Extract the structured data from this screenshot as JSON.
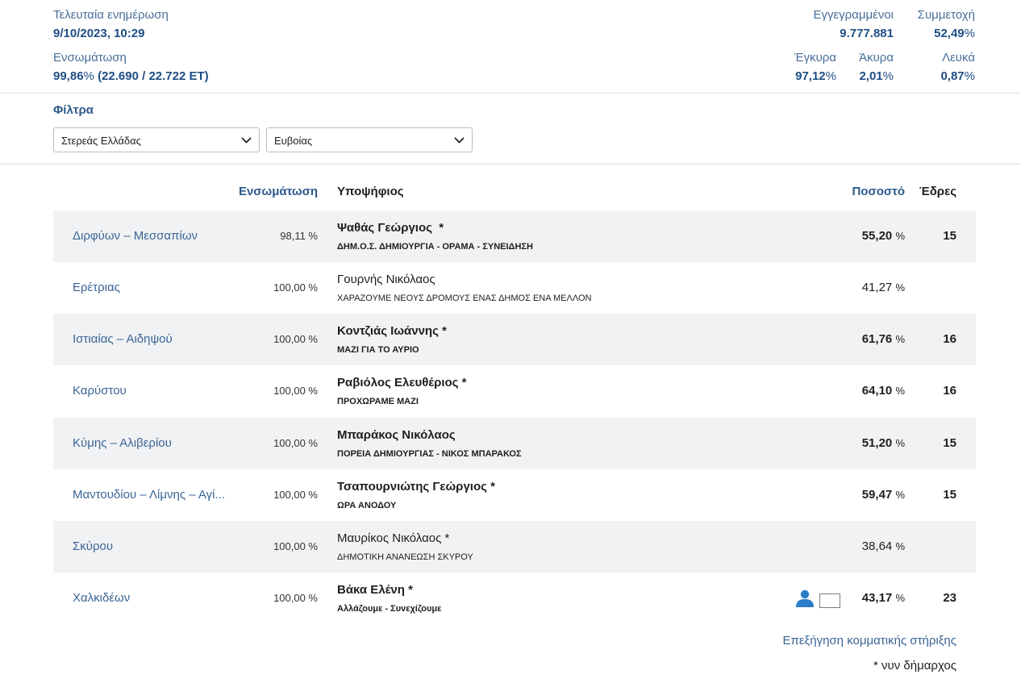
{
  "header": {
    "last_update_label": "Τελευταία ενημέρωση",
    "last_update_value": "9/10/2023, 10:29",
    "integration_label": "Ενσωμάτωση",
    "integration_value": "99,86",
    "integration_pct_sign": "%",
    "integration_counts": "(22.690 / 22.722 ΕΤ)",
    "registered_label": "Εγγεγραμμένοι",
    "registered_value": "9.777.881",
    "turnout_label": "Συμμετοχή",
    "turnout_value": "52,49",
    "valid_label": "Έγκυρα",
    "valid_value": "97,12",
    "invalid_label": "Άκυρα",
    "invalid_value": "2,01",
    "blank_label": "Λευκά",
    "blank_value": "0,87",
    "pct_sign": "%"
  },
  "filters": {
    "title": "Φίλτρα",
    "region_selected": "Στερεάς Ελλάδας",
    "prefecture_selected": "Ευβοίας"
  },
  "table": {
    "headers": {
      "integration": "Ενσωμάτωση",
      "candidate": "Υποψήφιος",
      "percentage": "Ποσοστό",
      "seats": "Έδρες"
    },
    "rows": [
      {
        "muni": "Διρφύων – Μεσσαπίων",
        "integ": "98,11 %",
        "cand": "Ψαθάς Γεώργιος  *",
        "party": "ΔΗΜ.Ο.Σ. ΔΗΜΙΟΥΡΓΙΑ - ΟΡΑΜΑ - ΣΥΝΕΙΔΗΣΗ",
        "pct": "55,20",
        "seats": "15"
      },
      {
        "muni": "Ερέτριας",
        "integ": "100,00 %",
        "cand": "Γουρνής Νικόλαος",
        "party": "ΧΑΡΑΖΟΥΜΕ ΝΕΟΥΣ ΔΡΟΜΟΥΣ ΕΝΑΣ ΔΗΜΟΣ ΕΝΑ ΜΕΛΛΟΝ",
        "pct": "41,27",
        "seats": ""
      },
      {
        "muni": "Ιστιαίας – Αιδηψού",
        "integ": "100,00 %",
        "cand": "Κοντζιάς Ιωάννης *",
        "party": "ΜΑΖΙ ΓΙΑ ΤΟ ΑΥΡΙΟ",
        "pct": "61,76",
        "seats": "16"
      },
      {
        "muni": "Καρύστου",
        "integ": "100,00 %",
        "cand": "Ραβιόλος Ελευθέριος *",
        "party": "ΠΡΟΧΩΡΑΜΕ ΜΑΖΙ",
        "pct": "64,10",
        "seats": "16"
      },
      {
        "muni": "Κύμης – Αλιβερίου",
        "integ": "100,00 %",
        "cand": "Μπαράκος Νικόλαος",
        "party": "ΠΟΡΕΙΑ ΔΗΜΙΟΥΡΓΙΑΣ - ΝΙΚΟΣ ΜΠΑΡΑΚΟΣ",
        "pct": "51,20",
        "seats": "15"
      },
      {
        "muni": "Μαντουδίου – Λίμνης – Αγί...",
        "integ": "100,00 %",
        "cand": "Τσαπουρνιώτης Γεώργιος *",
        "party": "ΩΡΑ ΑΝΟΔΟΥ",
        "pct": "59,47",
        "seats": "15"
      },
      {
        "muni": "Σκύρου",
        "integ": "100,00 %",
        "cand": "Μαυρίκος Νικόλαος *",
        "party": "ΔΗΜΟΤΙΚΗ ΑΝΑΝΕΩΣΗ ΣΚΥΡΟΥ",
        "pct": "38,64",
        "seats": ""
      },
      {
        "muni": "Χαλκιδέων",
        "integ": "100,00 %",
        "cand": "Βάκα Ελένη *",
        "party": "Αλλάζουμε - Συνεχίζουμε",
        "pct": "43,17",
        "seats": "23"
      }
    ],
    "pct_sign": "%"
  },
  "footer": {
    "party_support_link": "Επεξήγηση κομματικής στήριξης",
    "incumbent_note": "* νυν δήμαρχος"
  },
  "colors": {
    "accent": "#1f4e85",
    "link": "#3a6595",
    "row_shade": "#f1f2f4",
    "person_icon": "#2a7ec8"
  }
}
